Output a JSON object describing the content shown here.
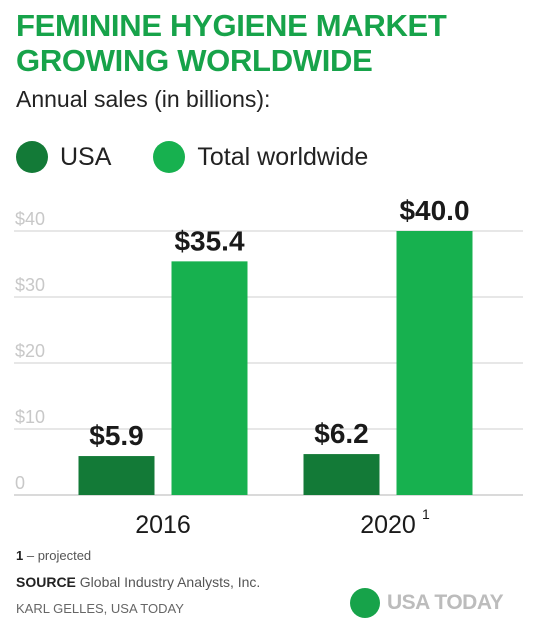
{
  "header": {
    "title_line1": "FEMININE HYGIENE MARKET",
    "title_line2": "GROWING WORLDWIDE",
    "subtitle": "Annual sales (in billions):"
  },
  "colors": {
    "usa": "#137a37",
    "worldwide": "#17b14f",
    "title": "#17a34a",
    "grid": "#cfcfcf"
  },
  "chart_data": {
    "type": "bar",
    "categories": [
      "2016",
      "2020"
    ],
    "category_superscripts": [
      "",
      "1"
    ],
    "series": [
      {
        "name": "USA",
        "values": [
          5.9,
          6.2
        ],
        "labels": [
          "$5.9",
          "$6.2"
        ]
      },
      {
        "name": "Total worldwide",
        "values": [
          35.4,
          40.0
        ],
        "labels": [
          "$35.4",
          "$40.0"
        ]
      }
    ],
    "ylim": [
      0,
      40
    ],
    "yticks": [
      0,
      10,
      20,
      30,
      40
    ],
    "ytick_labels": [
      "0",
      "$10",
      "$20",
      "$30",
      "$40"
    ],
    "grid": true,
    "legend": "top-left"
  },
  "footer": {
    "footnote_marker": "1",
    "footnote_text": " – projected",
    "source_label": "SOURCE",
    "source_text": " Global Industry Analysts, Inc.",
    "credit": "KARL GELLES, USA TODAY",
    "logo_text": "USA TODAY",
    "logo_icon": "green-circle-icon"
  }
}
